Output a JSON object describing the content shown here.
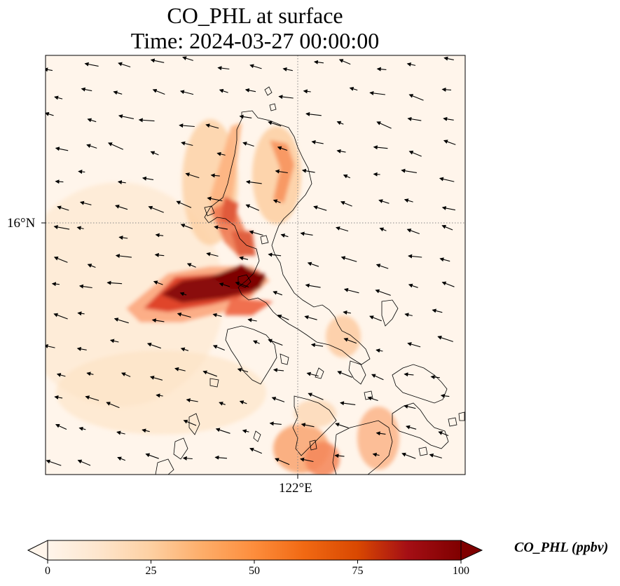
{
  "title": {
    "line1": "CO_PHL at surface",
    "line2": "Time: 2024-03-27 00:00:00"
  },
  "axes": {
    "lat_label": "16°N",
    "lon_label": "122°E"
  },
  "colorbar": {
    "label": "CO_PHL (ppbv)",
    "min": 0,
    "max": 100,
    "ticks": [
      "0",
      "25",
      "50",
      "75",
      "100"
    ],
    "extend": "both",
    "colormap": [
      "#fff5eb",
      "#fee6ce",
      "#fdd0a2",
      "#fdae6b",
      "#fd8d3c",
      "#f16913",
      "#d94801",
      "#a50f15",
      "#7f0000"
    ]
  },
  "map": {
    "gridline_style": "dotted",
    "gridline_color": "#888888",
    "coast_color": "#000000",
    "background_color": "#fff5eb"
  }
}
